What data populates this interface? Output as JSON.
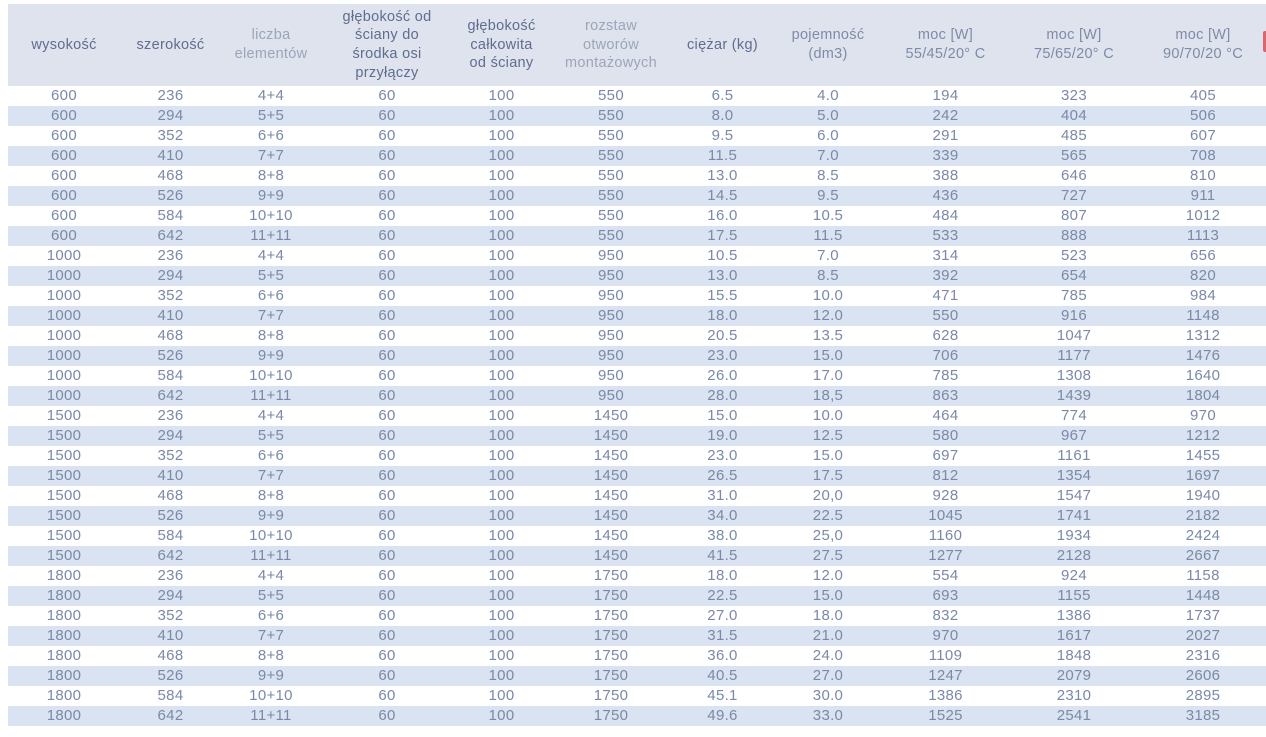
{
  "colors": {
    "header_bg": "#dfe3ed",
    "stripe_bg": "#d9e3f1",
    "data_text": "#7b89a6",
    "header_text_dark": "#5e6d90",
    "header_text_medium": "#7e8ba8",
    "header_text_light": "#9ba5ba",
    "red_edge_fragment": "#d9686e"
  },
  "table": {
    "columns": [
      {
        "label": "wysokość",
        "tone": "dark"
      },
      {
        "label": "szerokość",
        "tone": "dark"
      },
      {
        "label": "liczba\nelementów",
        "tone": "light"
      },
      {
        "label": "głębokość od\nściany do\nśrodka osi\nprzyłączy",
        "tone": "dark"
      },
      {
        "label": "głębokość\ncałkowita\nod ściany",
        "tone": "dark"
      },
      {
        "label": "rozstaw\notworów\nmontażowych",
        "tone": "light"
      },
      {
        "label": "ciężar (kg)",
        "tone": "dark"
      },
      {
        "label": "pojemność\n(dm3)",
        "tone": "medium"
      },
      {
        "label": "moc [W]\n55/45/20° C",
        "tone": "medium"
      },
      {
        "label": "moc [W]\n75/65/20° C",
        "tone": "medium"
      },
      {
        "label": "moc [W]\n90/70/20 °C",
        "tone": "medium"
      }
    ],
    "rows": [
      [
        "600",
        "236",
        "4+4",
        "60",
        "100",
        "550",
        "6.5",
        "4.0",
        "194",
        "323",
        "405"
      ],
      [
        "600",
        "294",
        "5+5",
        "60",
        "100",
        "550",
        "8.0",
        "5.0",
        "242",
        "404",
        "506"
      ],
      [
        "600",
        "352",
        "6+6",
        "60",
        "100",
        "550",
        "9.5",
        "6.0",
        "291",
        "485",
        "607"
      ],
      [
        "600",
        "410",
        "7+7",
        "60",
        "100",
        "550",
        "11.5",
        "7.0",
        "339",
        "565",
        "708"
      ],
      [
        "600",
        "468",
        "8+8",
        "60",
        "100",
        "550",
        "13.0",
        "8.5",
        "388",
        "646",
        "810"
      ],
      [
        "600",
        "526",
        "9+9",
        "60",
        "100",
        "550",
        "14.5",
        "9.5",
        "436",
        "727",
        "911"
      ],
      [
        "600",
        "584",
        "10+10",
        "60",
        "100",
        "550",
        "16.0",
        "10.5",
        "484",
        "807",
        "1012"
      ],
      [
        "600",
        "642",
        "11+11",
        "60",
        "100",
        "550",
        "17.5",
        "11.5",
        "533",
        "888",
        "1113"
      ],
      [
        "1000",
        "236",
        "4+4",
        "60",
        "100",
        "950",
        "10.5",
        "7.0",
        "314",
        "523",
        "656"
      ],
      [
        "1000",
        "294",
        "5+5",
        "60",
        "100",
        "950",
        "13.0",
        "8.5",
        "392",
        "654",
        "820"
      ],
      [
        "1000",
        "352",
        "6+6",
        "60",
        "100",
        "950",
        "15.5",
        "10.0",
        "471",
        "785",
        "984"
      ],
      [
        "1000",
        "410",
        "7+7",
        "60",
        "100",
        "950",
        "18.0",
        "12.0",
        "550",
        "916",
        "1148"
      ],
      [
        "1000",
        "468",
        "8+8",
        "60",
        "100",
        "950",
        "20.5",
        "13.5",
        "628",
        "1047",
        "1312"
      ],
      [
        "1000",
        "526",
        "9+9",
        "60",
        "100",
        "950",
        "23.0",
        "15.0",
        "706",
        "1177",
        "1476"
      ],
      [
        "1000",
        "584",
        "10+10",
        "60",
        "100",
        "950",
        "26.0",
        "17.0",
        "785",
        "1308",
        "1640"
      ],
      [
        "1000",
        "642",
        "11+11",
        "60",
        "100",
        "950",
        "28.0",
        "18,5",
        "863",
        "1439",
        "1804"
      ],
      [
        "1500",
        "236",
        "4+4",
        "60",
        "100",
        "1450",
        "15.0",
        "10.0",
        "464",
        "774",
        "970"
      ],
      [
        "1500",
        "294",
        "5+5",
        "60",
        "100",
        "1450",
        "19.0",
        "12.5",
        "580",
        "967",
        "1212"
      ],
      [
        "1500",
        "352",
        "6+6",
        "60",
        "100",
        "1450",
        "23.0",
        "15.0",
        "697",
        "1161",
        "1455"
      ],
      [
        "1500",
        "410",
        "7+7",
        "60",
        "100",
        "1450",
        "26.5",
        "17.5",
        "812",
        "1354",
        "1697"
      ],
      [
        "1500",
        "468",
        "8+8",
        "60",
        "100",
        "1450",
        "31.0",
        "20,0",
        "928",
        "1547",
        "1940"
      ],
      [
        "1500",
        "526",
        "9+9",
        "60",
        "100",
        "1450",
        "34.0",
        "22.5",
        "1045",
        "1741",
        "2182"
      ],
      [
        "1500",
        "584",
        "10+10",
        "60",
        "100",
        "1450",
        "38.0",
        "25,0",
        "1160",
        "1934",
        "2424"
      ],
      [
        "1500",
        "642",
        "11+11",
        "60",
        "100",
        "1450",
        "41.5",
        "27.5",
        "1277",
        "2128",
        "2667"
      ],
      [
        "1800",
        "236",
        "4+4",
        "60",
        "100",
        "1750",
        "18.0",
        "12.0",
        "554",
        "924",
        "1158"
      ],
      [
        "1800",
        "294",
        "5+5",
        "60",
        "100",
        "1750",
        "22.5",
        "15.0",
        "693",
        "1155",
        "1448"
      ],
      [
        "1800",
        "352",
        "6+6",
        "60",
        "100",
        "1750",
        "27.0",
        "18.0",
        "832",
        "1386",
        "1737"
      ],
      [
        "1800",
        "410",
        "7+7",
        "60",
        "100",
        "1750",
        "31.5",
        "21.0",
        "970",
        "1617",
        "2027"
      ],
      [
        "1800",
        "468",
        "8+8",
        "60",
        "100",
        "1750",
        "36.0",
        "24.0",
        "1109",
        "1848",
        "2316"
      ],
      [
        "1800",
        "526",
        "9+9",
        "60",
        "100",
        "1750",
        "40.5",
        "27.0",
        "1247",
        "2079",
        "2606"
      ],
      [
        "1800",
        "584",
        "10+10",
        "60",
        "100",
        "1750",
        "45.1",
        "30.0",
        "1386",
        "2310",
        "2895"
      ],
      [
        "1800",
        "642",
        "11+11",
        "60",
        "100",
        "1750",
        "49.6",
        "33.0",
        "1525",
        "2541",
        "3185"
      ]
    ]
  }
}
